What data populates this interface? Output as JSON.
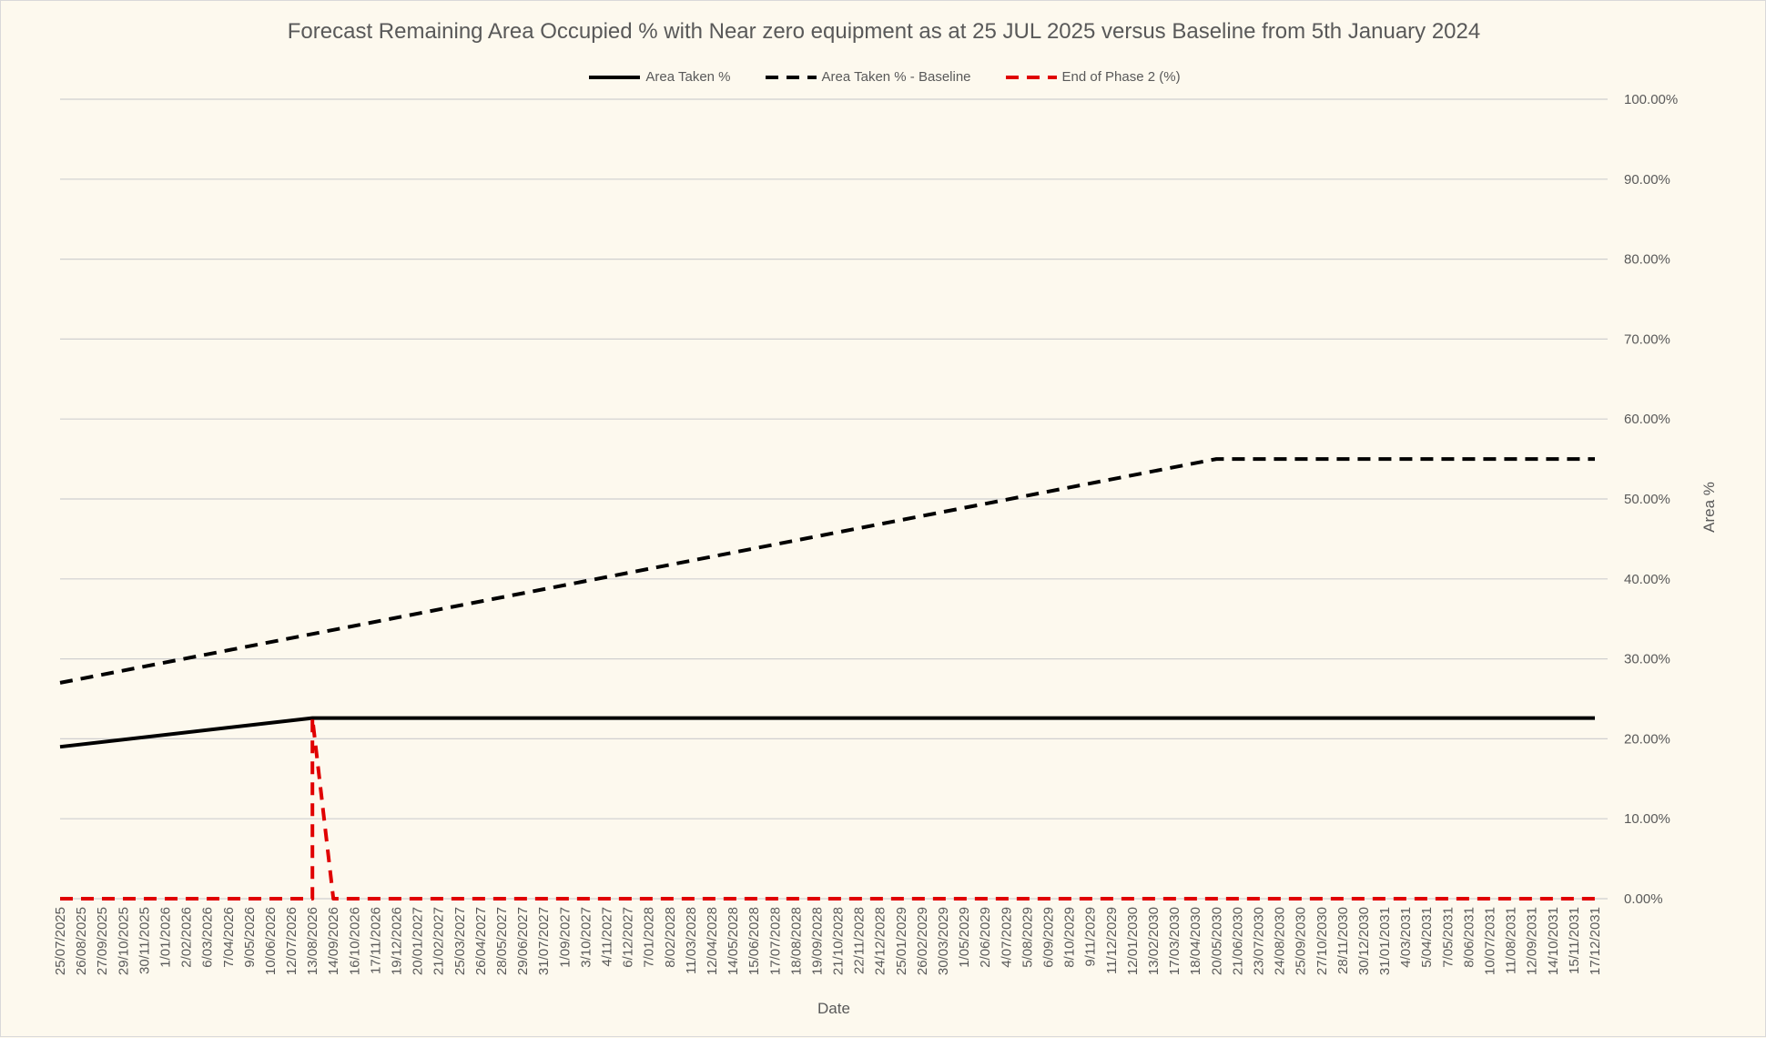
{
  "title": "Forecast Remaining Area Occupied % with Near zero equipment as at 25 JUL 2025 versus Baseline from 5th January 2024",
  "legend": [
    {
      "label": "Area Taken %",
      "color": "#000000",
      "dash": "solid"
    },
    {
      "label": "Area Taken % - Baseline",
      "color": "#000000",
      "dash": "dashed"
    },
    {
      "label": "End of Phase 2 (%)",
      "color": "#e00000",
      "dash": "dashed"
    }
  ],
  "chart_data": {
    "type": "line",
    "title": "Forecast Remaining Area Occupied % with Near zero equipment as at 25 JUL 2025 versus Baseline from 5th January 2024",
    "xlabel": "Date",
    "ylabel": "Area %",
    "ylim": [
      0,
      100
    ],
    "y_axis_position": "right",
    "y_ticks": [
      "0.00%",
      "10.00%",
      "20.00%",
      "30.00%",
      "40.00%",
      "50.00%",
      "60.00%",
      "70.00%",
      "80.00%",
      "90.00%",
      "100.00%"
    ],
    "grid": true,
    "legend_position": "top",
    "x_labels": [
      "25/07/2025",
      "26/08/2025",
      "27/09/2025",
      "29/10/2025",
      "30/11/2025",
      "1/01/2026",
      "2/02/2026",
      "6/03/2026",
      "7/04/2026",
      "9/05/2026",
      "10/06/2026",
      "12/07/2026",
      "13/08/2026",
      "14/09/2026",
      "16/10/2026",
      "17/11/2026",
      "19/12/2026",
      "20/01/2027",
      "21/02/2027",
      "25/03/2027",
      "26/04/2027",
      "28/05/2027",
      "29/06/2027",
      "31/07/2027",
      "1/09/2027",
      "3/10/2027",
      "4/11/2027",
      "6/12/2027",
      "7/01/2028",
      "8/02/2028",
      "11/03/2028",
      "12/04/2028",
      "14/05/2028",
      "15/06/2028",
      "17/07/2028",
      "18/08/2028",
      "19/09/2028",
      "21/10/2028",
      "22/11/2028",
      "24/12/2028",
      "25/01/2029",
      "26/02/2029",
      "30/03/2029",
      "1/05/2029",
      "2/06/2029",
      "4/07/2029",
      "5/08/2029",
      "6/09/2029",
      "8/10/2029",
      "9/11/2029",
      "11/12/2029",
      "12/01/2030",
      "13/02/2030",
      "17/03/2030",
      "18/04/2030",
      "20/05/2030",
      "21/06/2030",
      "23/07/2030",
      "24/08/2030",
      "25/09/2030",
      "27/10/2030",
      "28/11/2030",
      "30/12/2030",
      "31/01/2031",
      "4/03/2031",
      "5/04/2031",
      "7/05/2031",
      "8/06/2031",
      "10/07/2031",
      "11/08/2031",
      "12/09/2031",
      "14/10/2031",
      "15/11/2031",
      "17/12/2031"
    ],
    "series": [
      {
        "name": "Area Taken %",
        "color": "#000000",
        "dash": "solid",
        "points": [
          [
            "25/07/2025",
            19.0
          ],
          [
            "13/08/2026",
            22.6
          ],
          [
            "17/12/2031",
            22.6
          ]
        ]
      },
      {
        "name": "Area Taken % - Baseline",
        "color": "#000000",
        "dash": "dashed",
        "points": [
          [
            "25/07/2025",
            27.0
          ],
          [
            "20/05/2030",
            55.0
          ],
          [
            "17/12/2031",
            55.0
          ]
        ]
      },
      {
        "name": "End of Phase 2 (%)",
        "color": "#e00000",
        "dash": "dashed",
        "points": [
          [
            "25/07/2025",
            0.0
          ],
          [
            "13/08/2026",
            0.0
          ],
          [
            "13/08/2026",
            22.6
          ],
          [
            "14/09/2026",
            0.0
          ],
          [
            "17/12/2031",
            0.0
          ]
        ]
      }
    ]
  }
}
